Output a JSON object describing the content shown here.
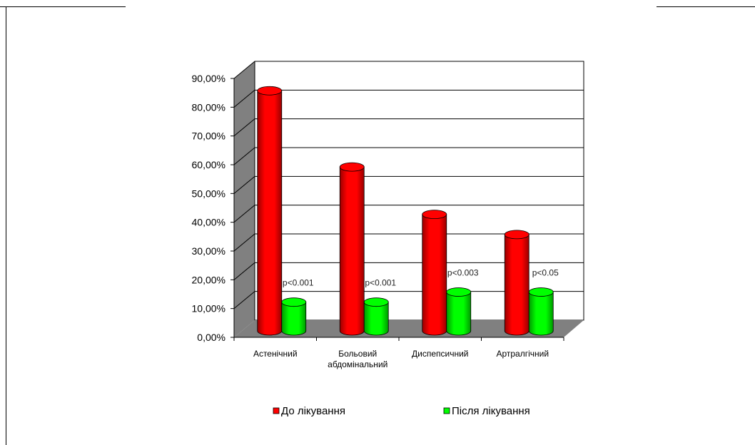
{
  "chart_data": {
    "type": "bar",
    "style": "3d-cylinder",
    "categories": [
      [
        "Астенічний"
      ],
      [
        "Больовий",
        "абдомінальний"
      ],
      [
        "Диспепсичний"
      ],
      [
        "Артралгічний"
      ]
    ],
    "series": [
      {
        "name": "До лікування",
        "values": [
          83.5,
          57,
          40.5,
          33.5
        ],
        "color": "#ff0000"
      },
      {
        "name": "Після лікування",
        "values": [
          10,
          10,
          13.5,
          13.5
        ],
        "color": "#00ff00"
      }
    ],
    "annotations": [
      "p<0.001",
      "p<0.001",
      "p<0.003",
      "p<0.05"
    ],
    "ylim": [
      0,
      90
    ],
    "yticks": [
      "0,00%",
      "10,00%",
      "20,00%",
      "30,00%",
      "40,00%",
      "50,00%",
      "60,00%",
      "70,00%",
      "80,00%",
      "90,00%"
    ],
    "grid": true,
    "legend_position": "bottom"
  }
}
